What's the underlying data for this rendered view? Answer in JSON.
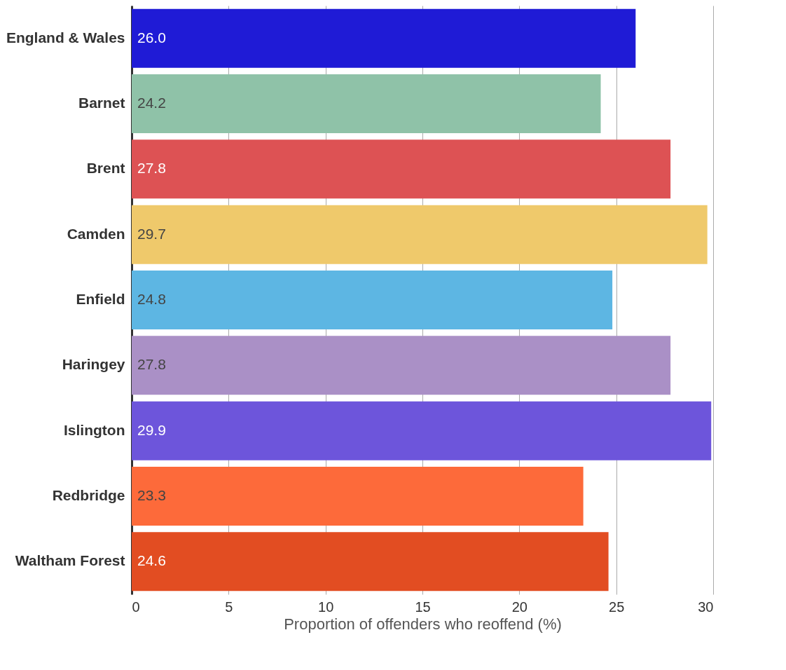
{
  "chart_data": {
    "type": "bar",
    "orientation": "horizontal",
    "xlabel": "Proportion of offenders who reoffend (%)",
    "categories": [
      "England & Wales",
      "Barnet",
      "Brent",
      "Camden",
      "Enfield",
      "Haringey",
      "Islington",
      "Redbridge",
      "Waltham Forest"
    ],
    "values": [
      26.0,
      24.2,
      27.8,
      29.7,
      24.8,
      27.8,
      29.9,
      23.3,
      24.6
    ],
    "colors": [
      "#1f1bd6",
      "#8fc2a8",
      "#dd5254",
      "#efc96b",
      "#5db6e3",
      "#aa90c6",
      "#6d55db",
      "#fd6a3a",
      "#e24d22"
    ],
    "value_labels": [
      "26.0",
      "24.2",
      "27.8",
      "29.7",
      "24.8",
      "27.8",
      "29.9",
      "23.3",
      "24.6"
    ],
    "xlim": [
      0,
      30
    ],
    "xticks": [
      0,
      5,
      10,
      15,
      20,
      25,
      30
    ],
    "grid": "x"
  }
}
